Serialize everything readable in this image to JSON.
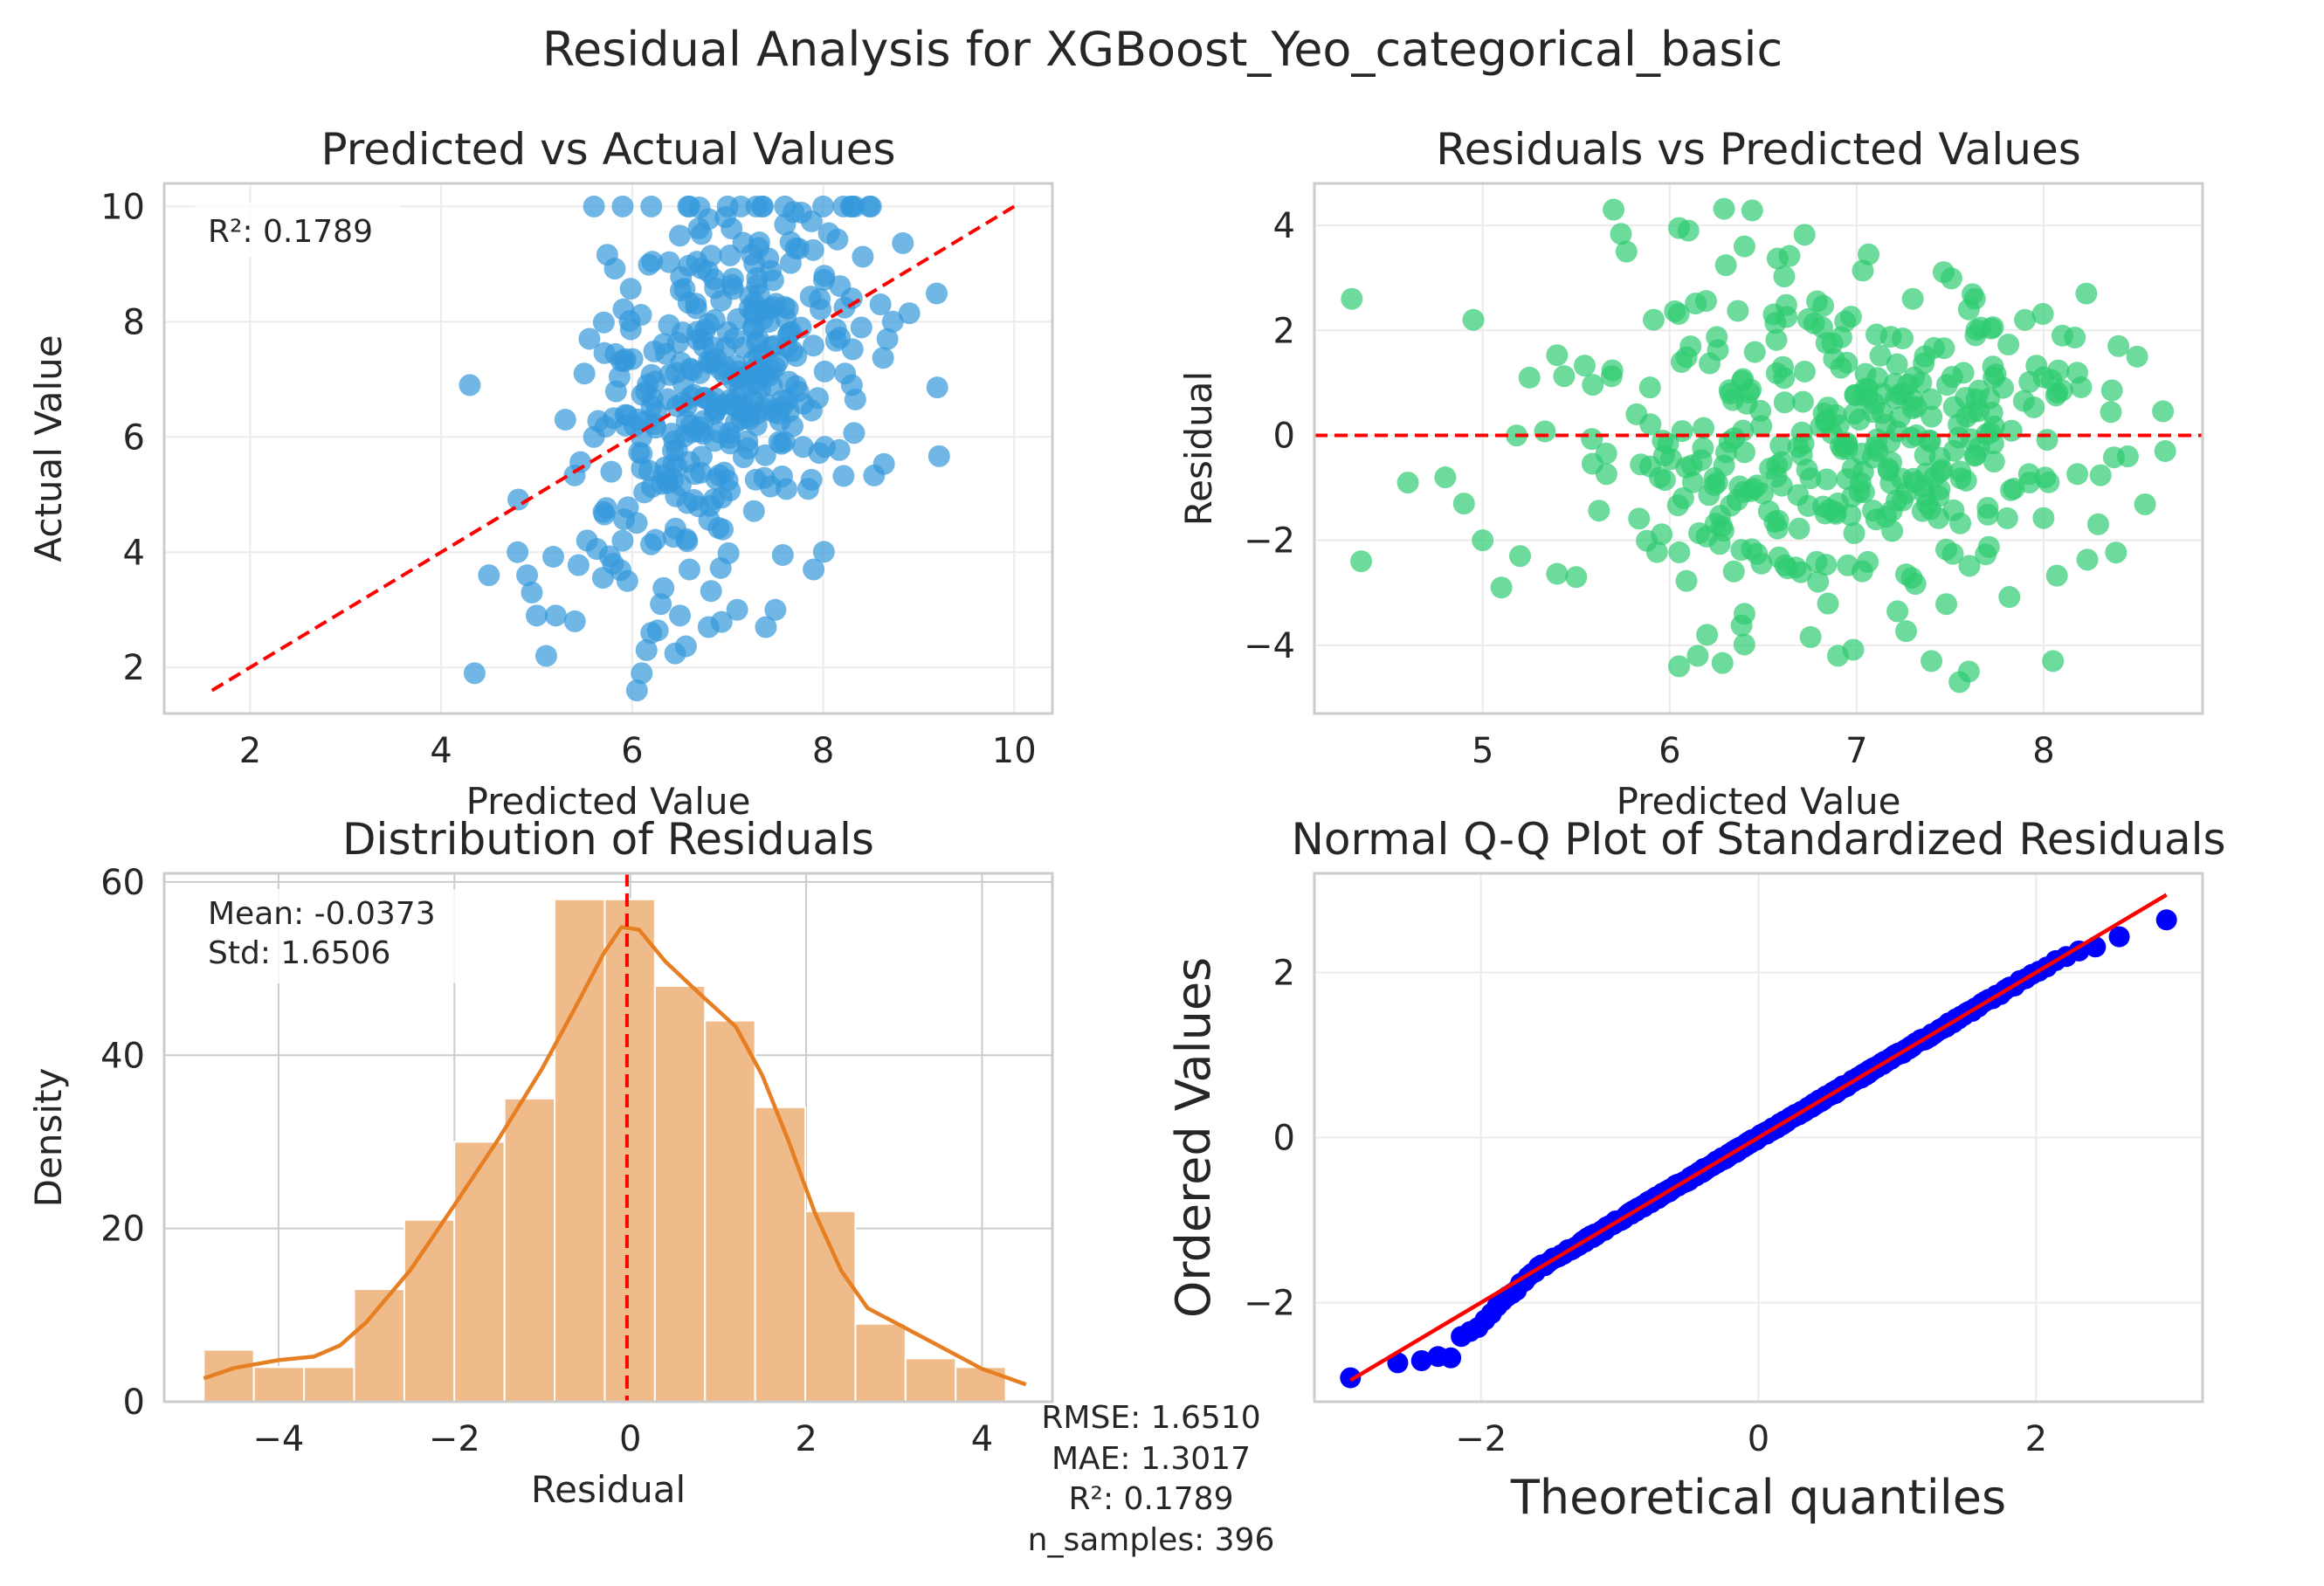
{
  "figure": {
    "title": "Residual Analysis for XGBoost_Yeo_categorical_basic",
    "summary_lines": [
      "RMSE: 1.6510",
      "MAE: 1.3017",
      "R²: 0.1789",
      "n_samples: 396"
    ]
  },
  "colors": {
    "scatter_blue": "#3498db",
    "scatter_green": "#2ecc71",
    "hist_orange": "#e67e22",
    "hist_fill": "#f0bb8a",
    "qq_points": "#0000ff",
    "ref_red": "#ff0000",
    "axis_frame": "#cccccc",
    "grid": "#ebebeb"
  },
  "chart_data": [
    {
      "type": "scatter",
      "title": "Predicted vs Actual Values",
      "xlabel": "Predicted Value",
      "ylabel": "Actual Value",
      "xlim": [
        1.1,
        10.4
      ],
      "ylim": [
        1.2,
        10.4
      ],
      "xticks": [
        2,
        4,
        6,
        8,
        10
      ],
      "yticks": [
        2,
        4,
        6,
        8,
        10
      ],
      "annotation": "R²: 0.1789",
      "reference_line": {
        "style": "dashed",
        "from": [
          1.6,
          1.6
        ],
        "to": [
          10,
          10
        ]
      },
      "n_points": 396,
      "point_cloud": {
        "x_mean": 6.97,
        "x_std": 0.72,
        "y_mean": 6.93,
        "y_std": 1.8
      },
      "points": [
        [
          4.3,
          6.9
        ],
        [
          4.35,
          1.9
        ],
        [
          4.5,
          3.6
        ],
        [
          4.8,
          4.0
        ],
        [
          4.9,
          3.6
        ],
        [
          4.95,
          3.3
        ],
        [
          5.0,
          2.9
        ],
        [
          5.1,
          2.2
        ],
        [
          5.2,
          2.9
        ],
        [
          5.3,
          6.3
        ],
        [
          5.4,
          2.8
        ],
        [
          5.5,
          7.1
        ],
        [
          5.6,
          6.0
        ],
        [
          5.7,
          4.7
        ],
        [
          5.8,
          3.8
        ],
        [
          5.9,
          4.2
        ],
        [
          5.95,
          3.5
        ],
        [
          6.05,
          1.6
        ],
        [
          6.1,
          1.9
        ],
        [
          6.15,
          2.3
        ],
        [
          6.2,
          2.6
        ],
        [
          6.3,
          3.1
        ],
        [
          6.5,
          2.9
        ],
        [
          6.6,
          3.7
        ],
        [
          6.8,
          2.7
        ],
        [
          7.1,
          3.0
        ],
        [
          7.4,
          2.7
        ],
        [
          7.5,
          3.0
        ],
        [
          7.9,
          3.7
        ],
        [
          5.6,
          10.0
        ],
        [
          5.9,
          10.0
        ],
        [
          6.2,
          10.0
        ],
        [
          6.6,
          10.0
        ],
        [
          7.0,
          10.0
        ],
        [
          7.3,
          10.0
        ],
        [
          7.6,
          10.0
        ],
        [
          8.0,
          10.0
        ],
        [
          8.3,
          10.0
        ],
        [
          8.5,
          10.0
        ],
        [
          8.6,
          8.3
        ],
        [
          8.4,
          7.9
        ],
        [
          8.3,
          6.9
        ]
      ]
    },
    {
      "type": "scatter",
      "title": "Residuals vs Predicted Values",
      "xlabel": "Predicted Value",
      "ylabel": "Residual",
      "xlim": [
        4.1,
        8.85
      ],
      "ylim": [
        -5.3,
        4.8
      ],
      "xticks": [
        5,
        6,
        7,
        8
      ],
      "yticks": [
        -4,
        -2,
        0,
        2,
        4
      ],
      "reference_line": {
        "style": "dashed",
        "y": 0
      },
      "n_points": 396,
      "point_cloud": {
        "x_mean": 6.97,
        "x_std": 0.72,
        "y_mean": -0.04,
        "y_std": 1.65
      },
      "points": [
        [
          4.3,
          2.6
        ],
        [
          4.35,
          -2.4
        ],
        [
          4.6,
          -0.9
        ],
        [
          4.8,
          -0.8
        ],
        [
          4.9,
          -1.3
        ],
        [
          4.95,
          2.2
        ],
        [
          5.0,
          -2.0
        ],
        [
          5.1,
          -2.9
        ],
        [
          5.2,
          -2.3
        ],
        [
          5.25,
          1.1
        ],
        [
          5.5,
          -2.7
        ],
        [
          5.7,
          4.3
        ],
        [
          6.05,
          3.95
        ],
        [
          6.1,
          3.9
        ],
        [
          6.4,
          3.6
        ],
        [
          6.05,
          -4.4
        ],
        [
          6.15,
          -4.2
        ],
        [
          6.2,
          -3.8
        ],
        [
          6.4,
          -3.4
        ],
        [
          6.9,
          -4.2
        ],
        [
          7.4,
          -4.3
        ],
        [
          7.55,
          -4.7
        ],
        [
          7.6,
          -4.5
        ],
        [
          8.05,
          -4.3
        ],
        [
          7.3,
          2.6
        ],
        [
          7.6,
          2.4
        ],
        [
          7.9,
          2.2
        ],
        [
          8.1,
          1.9
        ],
        [
          8.4,
          1.7
        ],
        [
          8.5,
          1.5
        ],
        [
          8.65,
          -0.3
        ],
        [
          8.45,
          -0.4
        ]
      ]
    },
    {
      "type": "bar",
      "title": "Distribution of Residuals",
      "xlabel": "Residual",
      "ylabel": "Density",
      "xlim": [
        -5.3,
        4.8
      ],
      "ylim": [
        0,
        61
      ],
      "xticks": [
        -4,
        -2,
        0,
        2,
        4
      ],
      "yticks": [
        0,
        20,
        40,
        60
      ],
      "annotation_lines": [
        "Mean: -0.0373",
        "Std: 1.6506"
      ],
      "mean_line": {
        "style": "dashed",
        "x": -0.0373
      },
      "bins": [
        {
          "left": -4.85,
          "right": -4.28,
          "count": 6
        },
        {
          "left": -4.28,
          "right": -3.71,
          "count": 4
        },
        {
          "left": -3.71,
          "right": -3.14,
          "count": 4
        },
        {
          "left": -3.14,
          "right": -2.57,
          "count": 13
        },
        {
          "left": -2.57,
          "right": -2.0,
          "count": 21
        },
        {
          "left": -2.0,
          "right": -1.43,
          "count": 30
        },
        {
          "left": -1.43,
          "right": -0.86,
          "count": 35
        },
        {
          "left": -0.86,
          "right": -0.29,
          "count": 58
        },
        {
          "left": -0.29,
          "right": 0.28,
          "count": 58
        },
        {
          "left": 0.28,
          "right": 0.85,
          "count": 48
        },
        {
          "left": 0.85,
          "right": 1.42,
          "count": 44
        },
        {
          "left": 1.42,
          "right": 1.99,
          "count": 34
        },
        {
          "left": 1.99,
          "right": 2.56,
          "count": 22
        },
        {
          "left": 2.56,
          "right": 3.13,
          "count": 9
        },
        {
          "left": 3.13,
          "right": 3.7,
          "count": 5
        },
        {
          "left": 3.7,
          "right": 4.27,
          "count": 4
        }
      ],
      "kde": [
        [
          -4.85,
          2.7
        ],
        [
          -4.5,
          3.9
        ],
        [
          -4.0,
          4.8
        ],
        [
          -3.6,
          5.2
        ],
        [
          -3.3,
          6.5
        ],
        [
          -3.0,
          9.2
        ],
        [
          -2.5,
          15.2
        ],
        [
          -2.0,
          22.7
        ],
        [
          -1.5,
          30.3
        ],
        [
          -1.0,
          38.5
        ],
        [
          -0.6,
          46.0
        ],
        [
          -0.3,
          51.8
        ],
        [
          -0.1,
          54.8
        ],
        [
          0.1,
          54.5
        ],
        [
          0.4,
          50.8
        ],
        [
          0.8,
          47.0
        ],
        [
          1.2,
          43.3
        ],
        [
          1.5,
          37.7
        ],
        [
          1.8,
          30.1
        ],
        [
          2.1,
          21.8
        ],
        [
          2.4,
          15.1
        ],
        [
          2.7,
          10.8
        ],
        [
          3.0,
          9.2
        ],
        [
          3.5,
          6.5
        ],
        [
          4.0,
          3.8
        ],
        [
          4.5,
          2.0
        ]
      ]
    },
    {
      "type": "scatter",
      "title": "Normal Q-Q Plot of Standardized Residuals",
      "xlabel": "Theoretical quantiles",
      "ylabel": "Ordered Values",
      "xlim": [
        -3.2,
        3.2
      ],
      "ylim": [
        -3.2,
        3.2
      ],
      "xticks": [
        -2,
        0,
        2
      ],
      "yticks": [
        -2,
        0,
        2
      ],
      "reference_line": {
        "from": [
          -2.94,
          -2.94
        ],
        "to": [
          2.94,
          2.94
        ]
      },
      "n_points": 396,
      "theoretical_range": [
        -2.94,
        2.94
      ],
      "ordered_range": [
        -2.9,
        2.64
      ]
    }
  ]
}
